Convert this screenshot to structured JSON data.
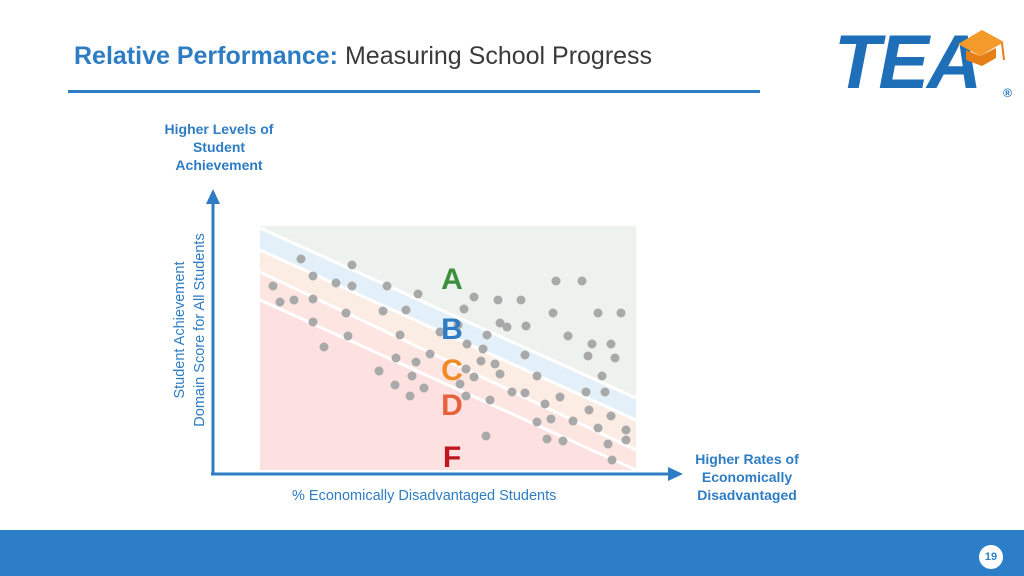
{
  "header": {
    "title_bold": "Relative Performance:",
    "title_light": "Measuring School Progress"
  },
  "logo": {
    "text": "TEA",
    "registered": "®",
    "brand_color": "#1e6fb8",
    "accent_color": "#f39a2b"
  },
  "chart": {
    "y_top_label": "Higher Levels of Student Achievement",
    "y_axis_line1": "Student Achievement",
    "y_axis_line2": "Domain Score for All Students",
    "x_axis_label": "% Economically Disadvantaged Students",
    "x_right_label": "Higher Rates of Economically Disadvantaged",
    "grades": [
      {
        "letter": "A",
        "color": "#3d8f3d"
      },
      {
        "letter": "B",
        "color": "#2e7cc4"
      },
      {
        "letter": "C",
        "color": "#f08a24"
      },
      {
        "letter": "D",
        "color": "#e8603c"
      },
      {
        "letter": "F",
        "color": "#c0161d"
      }
    ],
    "band_colors": {
      "A": "#eef2ee",
      "B": "#e4f0f9",
      "C": "#fbece4",
      "D": "#fde6e2",
      "F": "#fde0e0"
    },
    "point_color": "#a9a9a9",
    "axis_color": "#2e7cc4"
  },
  "footer": {
    "page_number": "19",
    "bar_color": "#2c7ec8"
  }
}
